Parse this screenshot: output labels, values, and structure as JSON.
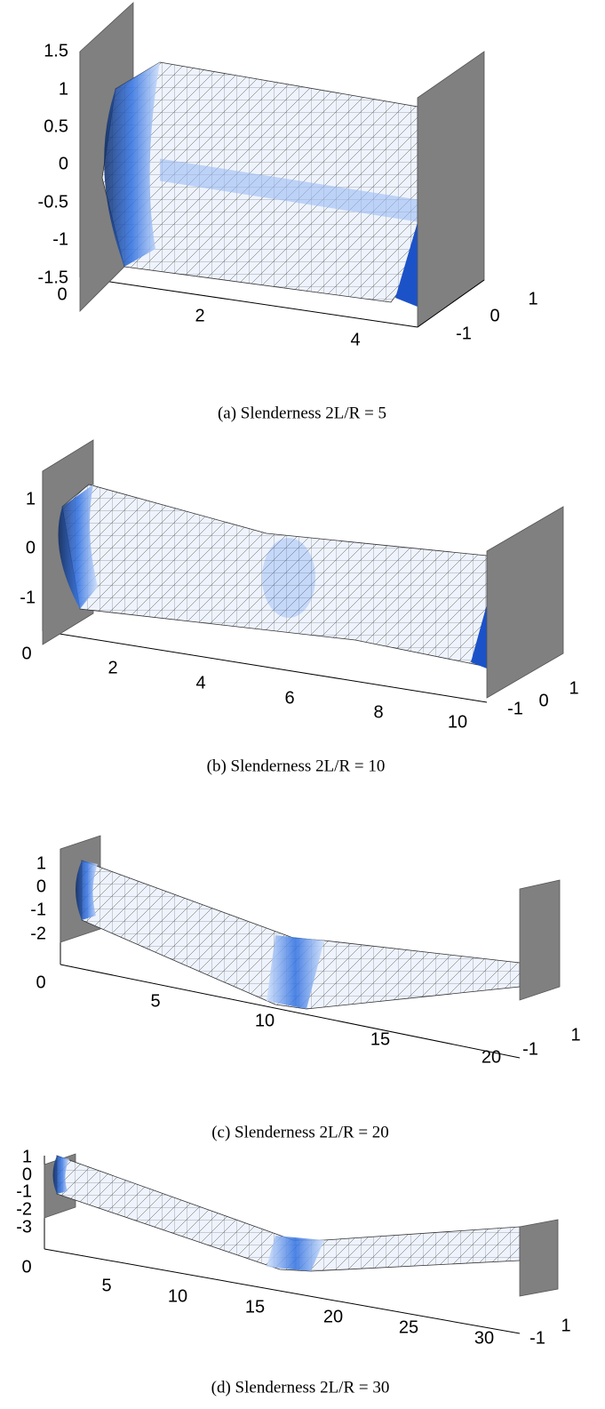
{
  "panels": [
    {
      "z_ticks": [
        "1.5",
        "1",
        "0.5",
        "0",
        "-0.5",
        "-1",
        "-1.5"
      ],
      "x_ticks": [
        "0",
        "2",
        "4"
      ],
      "y_ticks": [
        "1",
        "0",
        "-1"
      ],
      "caption": "(a) Slenderness 2L/R = 5"
    },
    {
      "z_ticks": [
        "1",
        "0",
        "-1"
      ],
      "x_ticks": [
        "0",
        "2",
        "4",
        "6",
        "8",
        "10"
      ],
      "y_ticks": [
        "1",
        "0",
        "-1"
      ],
      "caption": "(b) Slenderness 2L/R = 10"
    },
    {
      "z_ticks": [
        "1",
        "0",
        "-1",
        "-2"
      ],
      "x_ticks": [
        "0",
        "5",
        "10",
        "15",
        "20"
      ],
      "y_ticks": [
        "1",
        "-1"
      ],
      "caption": "(c) Slenderness 2L/R = 20"
    },
    {
      "z_ticks": [
        "1",
        "0",
        "-1",
        "-2",
        "-3"
      ],
      "x_ticks": [
        "0",
        "5",
        "10",
        "15",
        "20",
        "25",
        "30"
      ],
      "y_ticks": [
        "1",
        "-1"
      ],
      "caption": "(d) Slenderness 2L/R = 30"
    }
  ]
}
